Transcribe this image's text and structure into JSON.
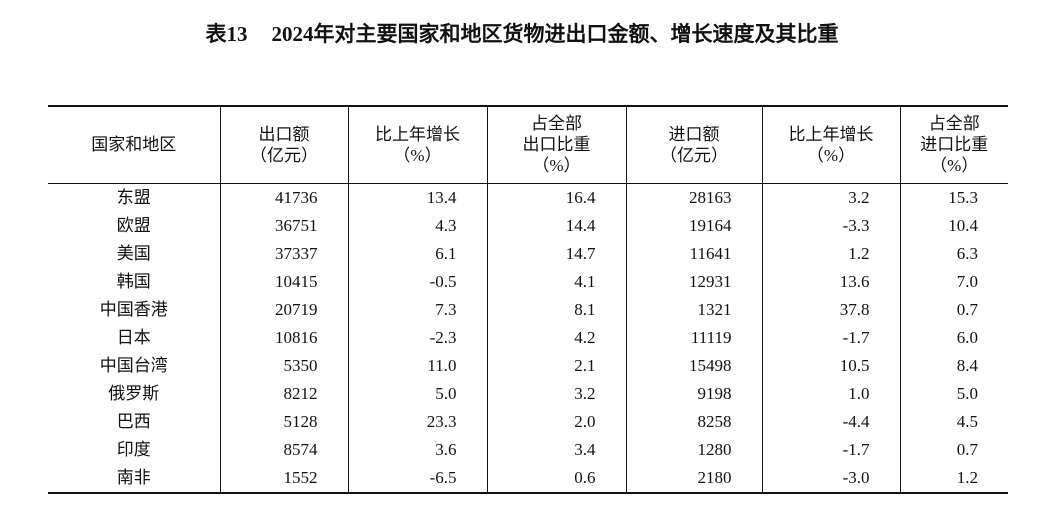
{
  "header": {
    "label": "表13",
    "title": "2024年对主要国家和地区货物进出口金额、增长速度及其比重"
  },
  "table": {
    "columns": [
      [
        "国家和地区"
      ],
      [
        "出口额",
        "（亿元）"
      ],
      [
        "比上年增长",
        "（%）"
      ],
      [
        "占全部",
        "出口比重",
        "（%）"
      ],
      [
        "进口额",
        "（亿元）"
      ],
      [
        "比上年增长",
        "（%）"
      ],
      [
        "占全部",
        "进口比重",
        "（%）"
      ]
    ],
    "rows": [
      [
        "东盟",
        "41736",
        "13.4",
        "16.4",
        "28163",
        "3.2",
        "15.3"
      ],
      [
        "欧盟",
        "36751",
        "4.3",
        "14.4",
        "19164",
        "-3.3",
        "10.4"
      ],
      [
        "美国",
        "37337",
        "6.1",
        "14.7",
        "11641",
        "1.2",
        "6.3"
      ],
      [
        "韩国",
        "10415",
        "-0.5",
        "4.1",
        "12931",
        "13.6",
        "7.0"
      ],
      [
        "中国香港",
        "20719",
        "7.3",
        "8.1",
        "1321",
        "37.8",
        "0.7"
      ],
      [
        "日本",
        "10816",
        "-2.3",
        "4.2",
        "11119",
        "-1.7",
        "6.0"
      ],
      [
        "中国台湾",
        "5350",
        "11.0",
        "2.1",
        "15498",
        "10.5",
        "8.4"
      ],
      [
        "俄罗斯",
        "8212",
        "5.0",
        "3.2",
        "9198",
        "1.0",
        "5.0"
      ],
      [
        "巴西",
        "5128",
        "23.3",
        "2.0",
        "8258",
        "-4.4",
        "4.5"
      ],
      [
        "印度",
        "8574",
        "3.6",
        "3.4",
        "1280",
        "-1.7",
        "0.7"
      ],
      [
        "南非",
        "1552",
        "-6.5",
        "0.6",
        "2180",
        "-3.0",
        "1.2"
      ]
    ]
  }
}
